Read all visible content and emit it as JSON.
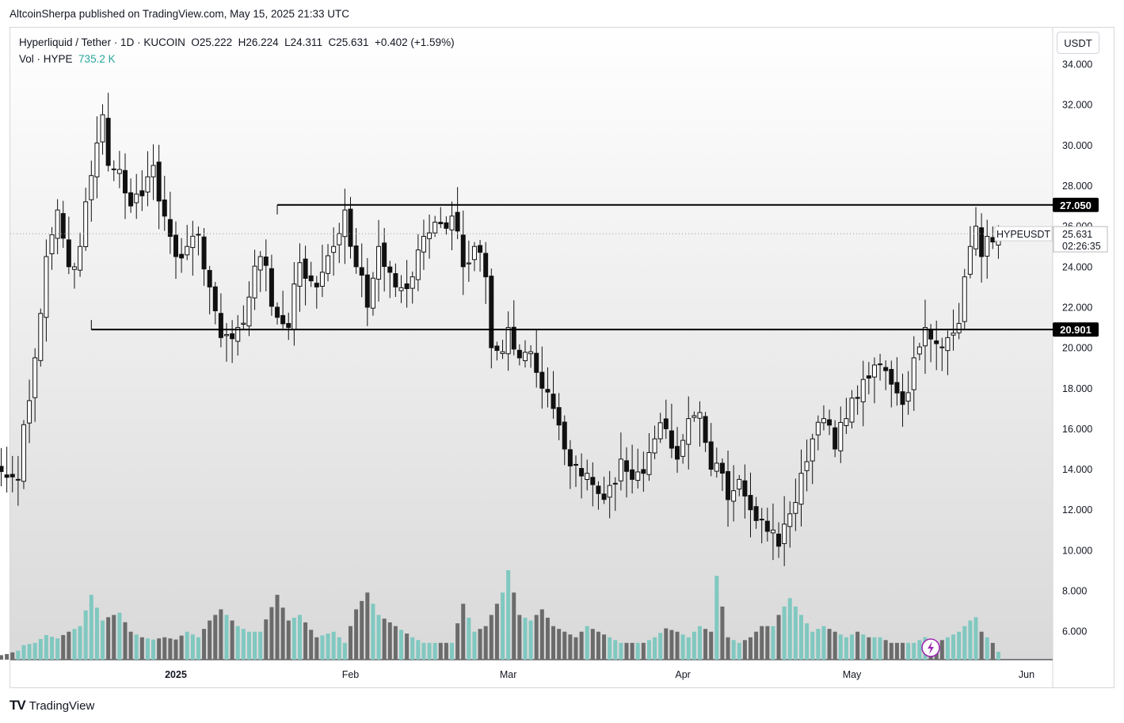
{
  "header": {
    "publisher_line": "AltcoinSherpa published on TradingView.com, May 15, 2025 21:33 UTC"
  },
  "legend": {
    "line1": "Hyperliquid / Tether · 1D · KUCOIN  O25.222  H26.224  L24.311  C25.631  +0.402 (+1.59%)",
    "vol_label": "Vol · HYPE",
    "vol_value": "735.2 K"
  },
  "currency_button": "USDT",
  "footer": {
    "logo": "TV",
    "brand": "TradingView"
  },
  "colors": {
    "up_volume": "#80c8c0",
    "down_volume": "#6b6b6b",
    "candle_body_down": "#111111",
    "candle_body_up": "#ffffff",
    "level_line": "#000000",
    "bg_top": "#ffffff",
    "bg_bottom": "#d9d9d9"
  },
  "chart_data": {
    "type": "candlestick",
    "symbol": "HYPEUSDT",
    "y_ticks": [
      "34.000",
      "32.000",
      "30.000",
      "28.000",
      "26.000",
      "24.000",
      "22.000",
      "20.000",
      "18.000",
      "16.000",
      "14.000",
      "12.000",
      "10.000",
      "8.000",
      "6.000"
    ],
    "y_tick_values": [
      34,
      32,
      30,
      28,
      26,
      24,
      22,
      20,
      18,
      16,
      14,
      12,
      10,
      8,
      6
    ],
    "ylim": [
      4.6,
      35.8
    ],
    "x_labels": [
      {
        "label": "2025",
        "bold": true,
        "date": "2025-01-01"
      },
      {
        "label": "Feb",
        "bold": false,
        "date": "2025-02-01"
      },
      {
        "label": "Mar",
        "bold": false,
        "date": "2025-03-01"
      },
      {
        "label": "Apr",
        "bold": false,
        "date": "2025-04-01"
      },
      {
        "label": "May",
        "bold": false,
        "date": "2025-05-01"
      },
      {
        "label": "Jun",
        "bold": false,
        "date": "2025-06-01"
      }
    ],
    "first_date": "2024-12-01",
    "last_date": "2025-06-01",
    "price_levels": [
      {
        "value": 27.05,
        "label": "27.050",
        "from_date": "2025-01-19"
      },
      {
        "value": 20.901,
        "label": "20.901",
        "from_date": "2024-12-17"
      }
    ],
    "last_price": {
      "label": "HYPEUSDT",
      "value": "25.631",
      "countdown": "02:26:35"
    },
    "volume_max": 8.5,
    "anchors": [
      {
        "date": "2024-11-29",
        "close": 10.0,
        "vol": 0.25
      },
      {
        "date": "2024-11-30",
        "close": 14.2,
        "vol": 0.3
      },
      {
        "date": "2024-12-02",
        "close": 13.6,
        "vol": 0.5
      },
      {
        "date": "2024-12-04",
        "close": 13.5,
        "vol": 0.8
      },
      {
        "date": "2024-12-05",
        "close": 16.2,
        "vol": 1.3
      },
      {
        "date": "2024-12-07",
        "close": 19.5,
        "vol": 1.5
      },
      {
        "date": "2024-12-09",
        "close": 24.5,
        "vol": 2.2
      },
      {
        "date": "2024-12-11",
        "close": 26.8,
        "vol": 1.9
      },
      {
        "date": "2024-12-13",
        "close": 24.0,
        "vol": 2.5
      },
      {
        "date": "2024-12-15",
        "close": 25.0,
        "vol": 3.0
      },
      {
        "date": "2024-12-17",
        "close": 28.5,
        "vol": 5.8
      },
      {
        "date": "2024-12-19",
        "close": 31.5,
        "vol": 3.5
      },
      {
        "date": "2024-12-20",
        "close": 29.0,
        "vol": 3.8
      },
      {
        "date": "2024-12-22",
        "close": 28.8,
        "vol": 4.2
      },
      {
        "date": "2024-12-24",
        "close": 27.0,
        "vol": 2.5
      },
      {
        "date": "2024-12-26",
        "close": 27.5,
        "vol": 2.0
      },
      {
        "date": "2024-12-28",
        "close": 29.0,
        "vol": 1.8
      },
      {
        "date": "2024-12-30",
        "close": 26.5,
        "vol": 2.0
      },
      {
        "date": "2025-01-01",
        "close": 24.5,
        "vol": 1.8
      },
      {
        "date": "2025-01-03",
        "close": 25.0,
        "vol": 2.5
      },
      {
        "date": "2025-01-05",
        "close": 25.6,
        "vol": 2.0
      },
      {
        "date": "2025-01-07",
        "close": 23.0,
        "vol": 3.5
      },
      {
        "date": "2025-01-09",
        "close": 20.5,
        "vol": 4.5
      },
      {
        "date": "2025-01-12",
        "close": 21.0,
        "vol": 3.0
      },
      {
        "date": "2025-01-14",
        "close": 22.5,
        "vol": 2.5
      },
      {
        "date": "2025-01-16",
        "close": 24.5,
        "vol": 2.5
      },
      {
        "date": "2025-01-19",
        "close": 21.5,
        "vol": 5.8
      },
      {
        "date": "2025-01-21",
        "close": 21.0,
        "vol": 3.5
      },
      {
        "date": "2025-01-23",
        "close": 24.2,
        "vol": 4.0
      },
      {
        "date": "2025-01-26",
        "close": 23.0,
        "vol": 2.0
      },
      {
        "date": "2025-01-29",
        "close": 25.0,
        "vol": 2.5
      },
      {
        "date": "2025-01-31",
        "close": 26.8,
        "vol": 1.5
      },
      {
        "date": "2025-02-02",
        "close": 24.0,
        "vol": 4.5
      },
      {
        "date": "2025-02-04",
        "close": 22.0,
        "vol": 6.0
      },
      {
        "date": "2025-02-06",
        "close": 25.0,
        "vol": 4.0
      },
      {
        "date": "2025-02-09",
        "close": 23.0,
        "vol": 3.0
      },
      {
        "date": "2025-02-12",
        "close": 23.5,
        "vol": 2.0
      },
      {
        "date": "2025-02-14",
        "close": 25.5,
        "vol": 1.5
      },
      {
        "date": "2025-02-16",
        "close": 26.2,
        "vol": 1.5
      },
      {
        "date": "2025-02-19",
        "close": 26.5,
        "vol": 1.5
      },
      {
        "date": "2025-02-21",
        "close": 24.0,
        "vol": 5.0
      },
      {
        "date": "2025-02-23",
        "close": 25.0,
        "vol": 2.5
      },
      {
        "date": "2025-02-25",
        "close": 23.5,
        "vol": 3.0
      },
      {
        "date": "2025-02-26",
        "close": 20.0,
        "vol": 4.0
      },
      {
        "date": "2025-02-28",
        "close": 19.8,
        "vol": 6.0
      },
      {
        "date": "2025-03-01",
        "close": 21.0,
        "vol": 8.0
      },
      {
        "date": "2025-03-03",
        "close": 19.5,
        "vol": 4.0
      },
      {
        "date": "2025-03-05",
        "close": 19.8,
        "vol": 3.5
      },
      {
        "date": "2025-03-07",
        "close": 18.0,
        "vol": 4.5
      },
      {
        "date": "2025-03-09",
        "close": 17.0,
        "vol": 3.0
      },
      {
        "date": "2025-03-11",
        "close": 15.0,
        "vol": 2.5
      },
      {
        "date": "2025-03-13",
        "close": 14.2,
        "vol": 2.0
      },
      {
        "date": "2025-03-15",
        "close": 13.8,
        "vol": 3.0
      },
      {
        "date": "2025-03-17",
        "close": 12.8,
        "vol": 2.5
      },
      {
        "date": "2025-03-19",
        "close": 13.2,
        "vol": 2.0
      },
      {
        "date": "2025-03-21",
        "close": 14.5,
        "vol": 1.5
      },
      {
        "date": "2025-03-23",
        "close": 13.5,
        "vol": 1.5
      },
      {
        "date": "2025-03-25",
        "close": 13.8,
        "vol": 1.5
      },
      {
        "date": "2025-03-27",
        "close": 15.5,
        "vol": 2.0
      },
      {
        "date": "2025-03-29",
        "close": 16.0,
        "vol": 2.8
      },
      {
        "date": "2025-03-31",
        "close": 14.5,
        "vol": 2.5
      },
      {
        "date": "2025-04-02",
        "close": 16.5,
        "vol": 2.0
      },
      {
        "date": "2025-04-04",
        "close": 16.8,
        "vol": 3.0
      },
      {
        "date": "2025-04-06",
        "close": 14.0,
        "vol": 2.5
      },
      {
        "date": "2025-04-07",
        "close": 14.3,
        "vol": 7.5
      },
      {
        "date": "2025-04-09",
        "close": 12.5,
        "vol": 2.0
      },
      {
        "date": "2025-04-11",
        "close": 13.5,
        "vol": 1.5
      },
      {
        "date": "2025-04-13",
        "close": 12.0,
        "vol": 2.0
      },
      {
        "date": "2025-04-15",
        "close": 11.5,
        "vol": 3.0
      },
      {
        "date": "2025-04-17",
        "close": 11.0,
        "vol": 3.0
      },
      {
        "date": "2025-04-18",
        "close": 10.2,
        "vol": 4.0
      },
      {
        "date": "2025-04-20",
        "close": 11.8,
        "vol": 5.5
      },
      {
        "date": "2025-04-22",
        "close": 13.8,
        "vol": 4.0
      },
      {
        "date": "2025-04-24",
        "close": 15.5,
        "vol": 2.5
      },
      {
        "date": "2025-04-26",
        "close": 16.5,
        "vol": 3.0
      },
      {
        "date": "2025-04-28",
        "close": 15.0,
        "vol": 2.5
      },
      {
        "date": "2025-04-30",
        "close": 16.5,
        "vol": 2.0
      },
      {
        "date": "2025-05-02",
        "close": 17.5,
        "vol": 2.5
      },
      {
        "date": "2025-05-04",
        "close": 18.5,
        "vol": 2.0
      },
      {
        "date": "2025-05-06",
        "close": 19.2,
        "vol": 2.0
      },
      {
        "date": "2025-05-08",
        "close": 18.2,
        "vol": 1.5
      },
      {
        "date": "2025-05-10",
        "close": 17.2,
        "vol": 1.5
      },
      {
        "date": "2025-05-12",
        "close": 19.5,
        "vol": 1.5
      },
      {
        "date": "2025-05-14",
        "close": 21.0,
        "vol": 2.0
      },
      {
        "date": "2025-05-16",
        "close": 20.2,
        "vol": 1.5
      },
      {
        "date": "2025-05-18",
        "close": 20.5,
        "vol": 2.0
      },
      {
        "date": "2025-05-20",
        "close": 21.2,
        "vol": 2.5
      },
      {
        "date": "2025-05-21",
        "close": 23.5,
        "vol": 3.0
      },
      {
        "date": "2025-05-22",
        "close": 25.0,
        "vol": 3.5
      },
      {
        "date": "2025-05-23",
        "close": 26.0,
        "vol": 3.8
      },
      {
        "date": "2025-05-24",
        "close": 24.5,
        "vol": 2.5
      },
      {
        "date": "2025-05-25",
        "close": 25.5,
        "vol": 2.0
      },
      {
        "date": "2025-05-26",
        "close": 25.222,
        "vol": 1.5
      },
      {
        "date": "2025-05-27",
        "close": 25.631,
        "vol": 0.7
      }
    ]
  }
}
